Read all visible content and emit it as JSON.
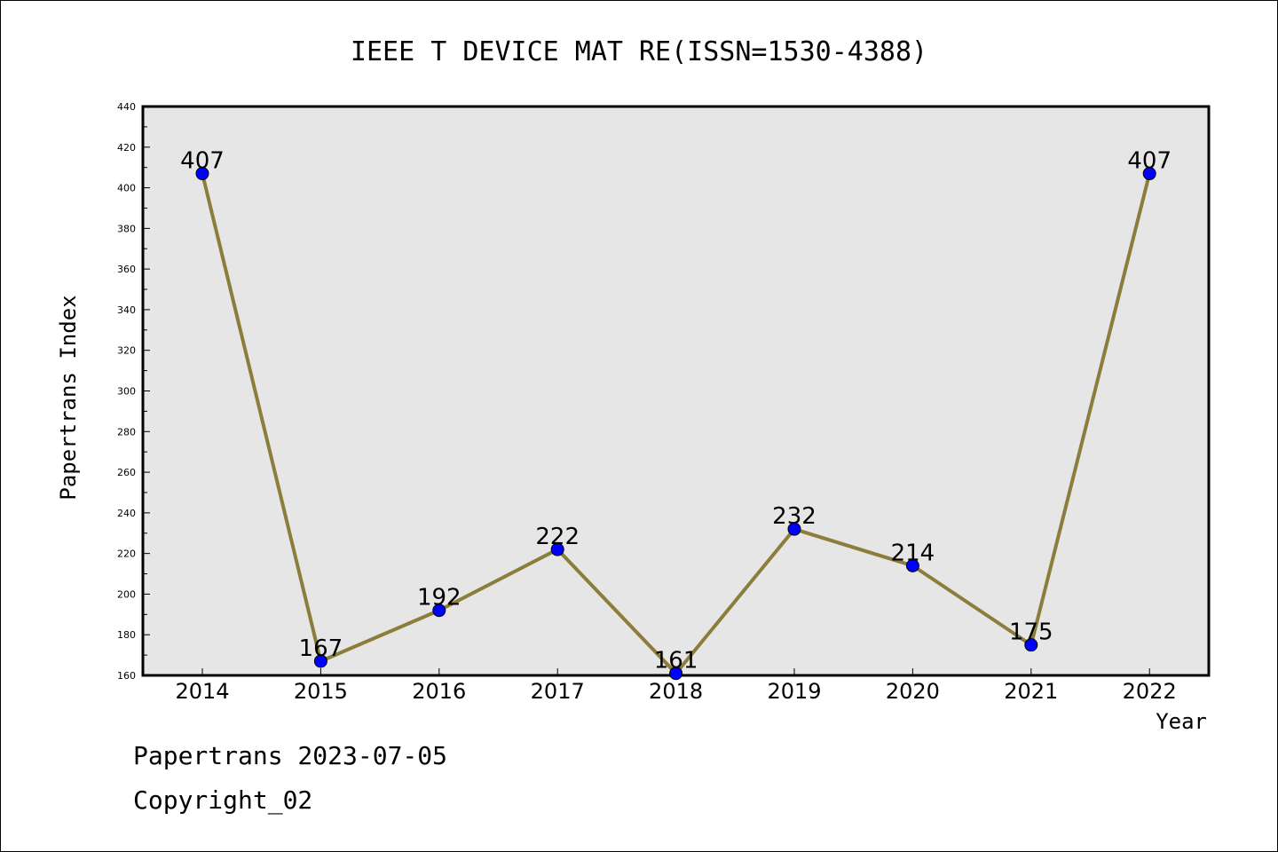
{
  "chart_data": {
    "type": "line",
    "title": "IEEE T DEVICE MAT RE(ISSN=1530-4388)",
    "xlabel": "Year",
    "ylabel": "Papertrans Index",
    "categories": [
      "2014",
      "2015",
      "2016",
      "2017",
      "2018",
      "2019",
      "2020",
      "2021",
      "2022"
    ],
    "series": [
      {
        "values": [
          407,
          167,
          192,
          222,
          161,
          232,
          214,
          175,
          407
        ],
        "line_color": "#8b7d3a",
        "marker_color": "#0000ff"
      }
    ],
    "data_labels": [
      "407",
      "167",
      "192",
      "222",
      "161",
      "232",
      "214",
      "175",
      "407"
    ],
    "ylim": [
      160,
      440
    ],
    "yticks": [
      160,
      180,
      200,
      220,
      240,
      260,
      280,
      300,
      320,
      340,
      360,
      380,
      400,
      420,
      440
    ],
    "plot_background": "#e6e6e6",
    "grid": false,
    "legend": "none"
  },
  "footer": {
    "line1": "Papertrans 2023-07-05",
    "line2": "Copyright_02"
  }
}
